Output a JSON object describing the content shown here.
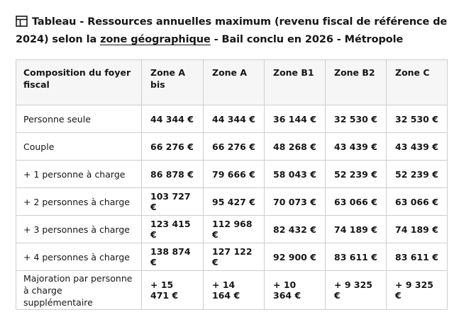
{
  "title": {
    "prefix": "Tableau - Ressources annuelles maximum (revenu fiscal de référence de 2024) selon la ",
    "link": "zone géographique",
    "suffix": " - Bail conclu en 2026 - Métropole"
  },
  "table": {
    "headers": [
      "Composition du foyer fiscal",
      "Zone A bis",
      "Zone A",
      "Zone B1",
      "Zone B2",
      "Zone C"
    ],
    "rows": [
      {
        "label": "Personne seule",
        "values": [
          "44 344 €",
          "44 344 €",
          "36 144 €",
          "32 530 €",
          "32 530 €"
        ]
      },
      {
        "label": "Couple",
        "values": [
          "66 276 €",
          "66 276 €",
          "48 268 €",
          "43 439 €",
          "43 439 €"
        ]
      },
      {
        "label": "+ 1 personne à charge",
        "values": [
          "86 878 €",
          "79 666 €",
          "58 043 €",
          "52 239 €",
          "52 239 €"
        ]
      },
      {
        "label": "+ 2 personnes à charge",
        "values": [
          "103 727 €",
          "95 427 €",
          "70 073 €",
          "63 066 €",
          "63 066 €"
        ]
      },
      {
        "label": "+ 3 personnes à charge",
        "values": [
          "123 415 €",
          "112 968 €",
          "82 432 €",
          "74 189 €",
          "74 189 €"
        ]
      },
      {
        "label": "+ 4 personnes à charge",
        "values": [
          "138 874 €",
          "127 122 €",
          "92 900 €",
          "83 611 €",
          "83 611 €"
        ]
      },
      {
        "label": "Majoration par personne à charge supplémentaire",
        "values": [
          "+ 15 471 €",
          "+ 14 164 €",
          "+ 10 364 €",
          "+ 9 325 €",
          "+ 9 325 €"
        ]
      }
    ]
  }
}
